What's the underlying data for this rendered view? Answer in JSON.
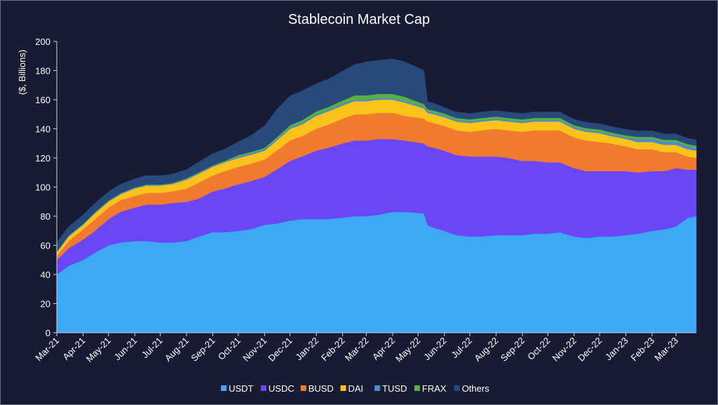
{
  "chart_data": {
    "type": "area",
    "title": "Stablecoin Market Cap",
    "xlabel": "",
    "ylabel": "($, Billions)",
    "ylim": [
      0,
      200
    ],
    "yticks": [
      0,
      20,
      40,
      60,
      80,
      100,
      120,
      140,
      160,
      180,
      200
    ],
    "xtick_labels": [
      "Mar-21",
      "Apr-21",
      "May-21",
      "Jun-21",
      "Jul-21",
      "Aug-21",
      "Sep-21",
      "Oct-21",
      "Nov-21",
      "Dec-21",
      "Jan-22",
      "Feb-22",
      "Mar-22",
      "Apr-22",
      "May-22",
      "Jun-22",
      "Jul-22",
      "Aug-22",
      "Sep-22",
      "Oct-22",
      "Nov-22",
      "Dec-22",
      "Jan-23",
      "Feb-23",
      "Mar-23"
    ],
    "x": [
      "2021-03-01",
      "2021-03-15",
      "2021-04-01",
      "2021-04-15",
      "2021-05-01",
      "2021-05-15",
      "2021-06-01",
      "2021-06-15",
      "2021-07-01",
      "2021-07-15",
      "2021-08-01",
      "2021-08-15",
      "2021-09-01",
      "2021-09-15",
      "2021-10-01",
      "2021-10-15",
      "2021-11-01",
      "2021-11-15",
      "2021-12-01",
      "2021-12-15",
      "2022-01-01",
      "2022-01-15",
      "2022-02-01",
      "2022-02-15",
      "2022-03-01",
      "2022-03-15",
      "2022-04-01",
      "2022-04-15",
      "2022-05-08",
      "2022-05-12",
      "2022-05-20",
      "2022-06-01",
      "2022-06-15",
      "2022-07-01",
      "2022-07-15",
      "2022-08-01",
      "2022-08-15",
      "2022-09-01",
      "2022-09-15",
      "2022-10-01",
      "2022-10-15",
      "2022-11-01",
      "2022-11-15",
      "2022-12-01",
      "2022-12-15",
      "2023-01-01",
      "2023-01-15",
      "2023-02-01",
      "2023-02-15",
      "2023-03-01",
      "2023-03-15",
      "2023-03-25"
    ],
    "series": [
      {
        "name": "USDT",
        "color": "#3da9f5",
        "values": [
          40,
          46,
          50,
          55,
          60,
          62,
          63,
          63,
          62,
          62,
          63,
          66,
          69,
          69,
          70,
          71,
          74,
          75,
          77,
          78,
          78,
          78,
          79,
          80,
          80,
          81,
          83,
          83,
          82,
          74,
          72,
          70,
          67,
          66,
          66,
          67,
          67,
          67,
          68,
          68,
          69,
          66,
          65,
          66,
          66,
          67,
          68,
          70,
          71,
          73,
          79,
          80
        ]
      },
      {
        "name": "USDC",
        "color": "#6a46f5",
        "values": [
          10,
          12,
          14,
          15,
          18,
          21,
          23,
          25,
          26,
          27,
          27,
          26,
          28,
          30,
          32,
          33,
          33,
          37,
          41,
          43,
          47,
          49,
          51,
          52,
          52,
          52,
          50,
          49,
          48,
          54,
          55,
          55,
          55,
          55,
          55,
          54,
          53,
          51,
          50,
          49,
          48,
          47,
          46,
          45,
          45,
          44,
          42,
          41,
          40,
          40,
          33,
          32
        ]
      },
      {
        "name": "BUSD",
        "color": "#f07b2f",
        "values": [
          3,
          5,
          7,
          8,
          8,
          8,
          8,
          8,
          8,
          8,
          9,
          11,
          11,
          12,
          12,
          12,
          12,
          13,
          14,
          14,
          15,
          16,
          17,
          18,
          18,
          18,
          18,
          17,
          17,
          17,
          17,
          17,
          17,
          17,
          18,
          19,
          19,
          20,
          21,
          22,
          22,
          21,
          21,
          20,
          19,
          17,
          16,
          15,
          13,
          11,
          9,
          8
        ]
      },
      {
        "name": "DAI",
        "color": "#fbc21b",
        "values": [
          2,
          3,
          3,
          4,
          4,
          4,
          5,
          5,
          5,
          5,
          6,
          6,
          6,
          6,
          6,
          6,
          6,
          7,
          8,
          8,
          9,
          9,
          9,
          9,
          9,
          9,
          9,
          9,
          7,
          6,
          6,
          6,
          6,
          6,
          6,
          6,
          6,
          6,
          6,
          6,
          6,
          6,
          6,
          6,
          5,
          5,
          5,
          5,
          5,
          5,
          5,
          5
        ]
      },
      {
        "name": "TUSD",
        "color": "#4a8bd1",
        "values": [
          0.5,
          0.5,
          0.5,
          0.5,
          0.5,
          0.5,
          0.5,
          0.5,
          0.5,
          0.5,
          0.5,
          0.5,
          0.5,
          0.5,
          1,
          1,
          1,
          1,
          1,
          1,
          1,
          1,
          1,
          1,
          1,
          1,
          1,
          1,
          1,
          1,
          1,
          1,
          1,
          1,
          1,
          1,
          1,
          1,
          1,
          1,
          1,
          1,
          1,
          1,
          1,
          1,
          2,
          2,
          2,
          2,
          2,
          2
        ]
      },
      {
        "name": "FRAX",
        "color": "#58b044",
        "values": [
          0.3,
          0.3,
          0.3,
          0.3,
          0.3,
          0.3,
          0.3,
          0.3,
          0.3,
          0.3,
          0.5,
          0.5,
          0.5,
          0.5,
          1,
          1,
          1,
          1,
          1.5,
          2,
          2,
          2,
          2.5,
          3,
          3,
          3,
          3,
          3,
          2,
          1.5,
          1.5,
          1.5,
          1.5,
          1.5,
          1.5,
          1.5,
          1.5,
          1.5,
          1.5,
          1.5,
          1.5,
          1.5,
          1.5,
          1.5,
          1.5,
          1.5,
          1.5,
          1.5,
          1.5,
          1.5,
          1.5,
          1.5
        ]
      },
      {
        "name": "Others",
        "color": "#274a7a",
        "values": [
          6,
          6,
          6,
          6,
          6,
          6,
          6,
          6,
          6,
          6,
          6,
          7,
          8,
          8,
          9,
          11,
          15,
          19,
          20,
          20,
          19,
          19,
          20,
          21,
          23,
          23,
          24,
          24,
          23,
          5,
          5,
          4,
          4,
          4,
          4,
          4,
          4,
          4,
          4,
          4,
          4,
          4,
          4,
          4,
          4,
          4,
          4,
          4,
          4,
          4,
          4,
          4
        ]
      }
    ],
    "grid": false,
    "legend_position": "bottom-center"
  },
  "colors": {
    "background": "#191a33",
    "axis": "#cfd1dc"
  }
}
